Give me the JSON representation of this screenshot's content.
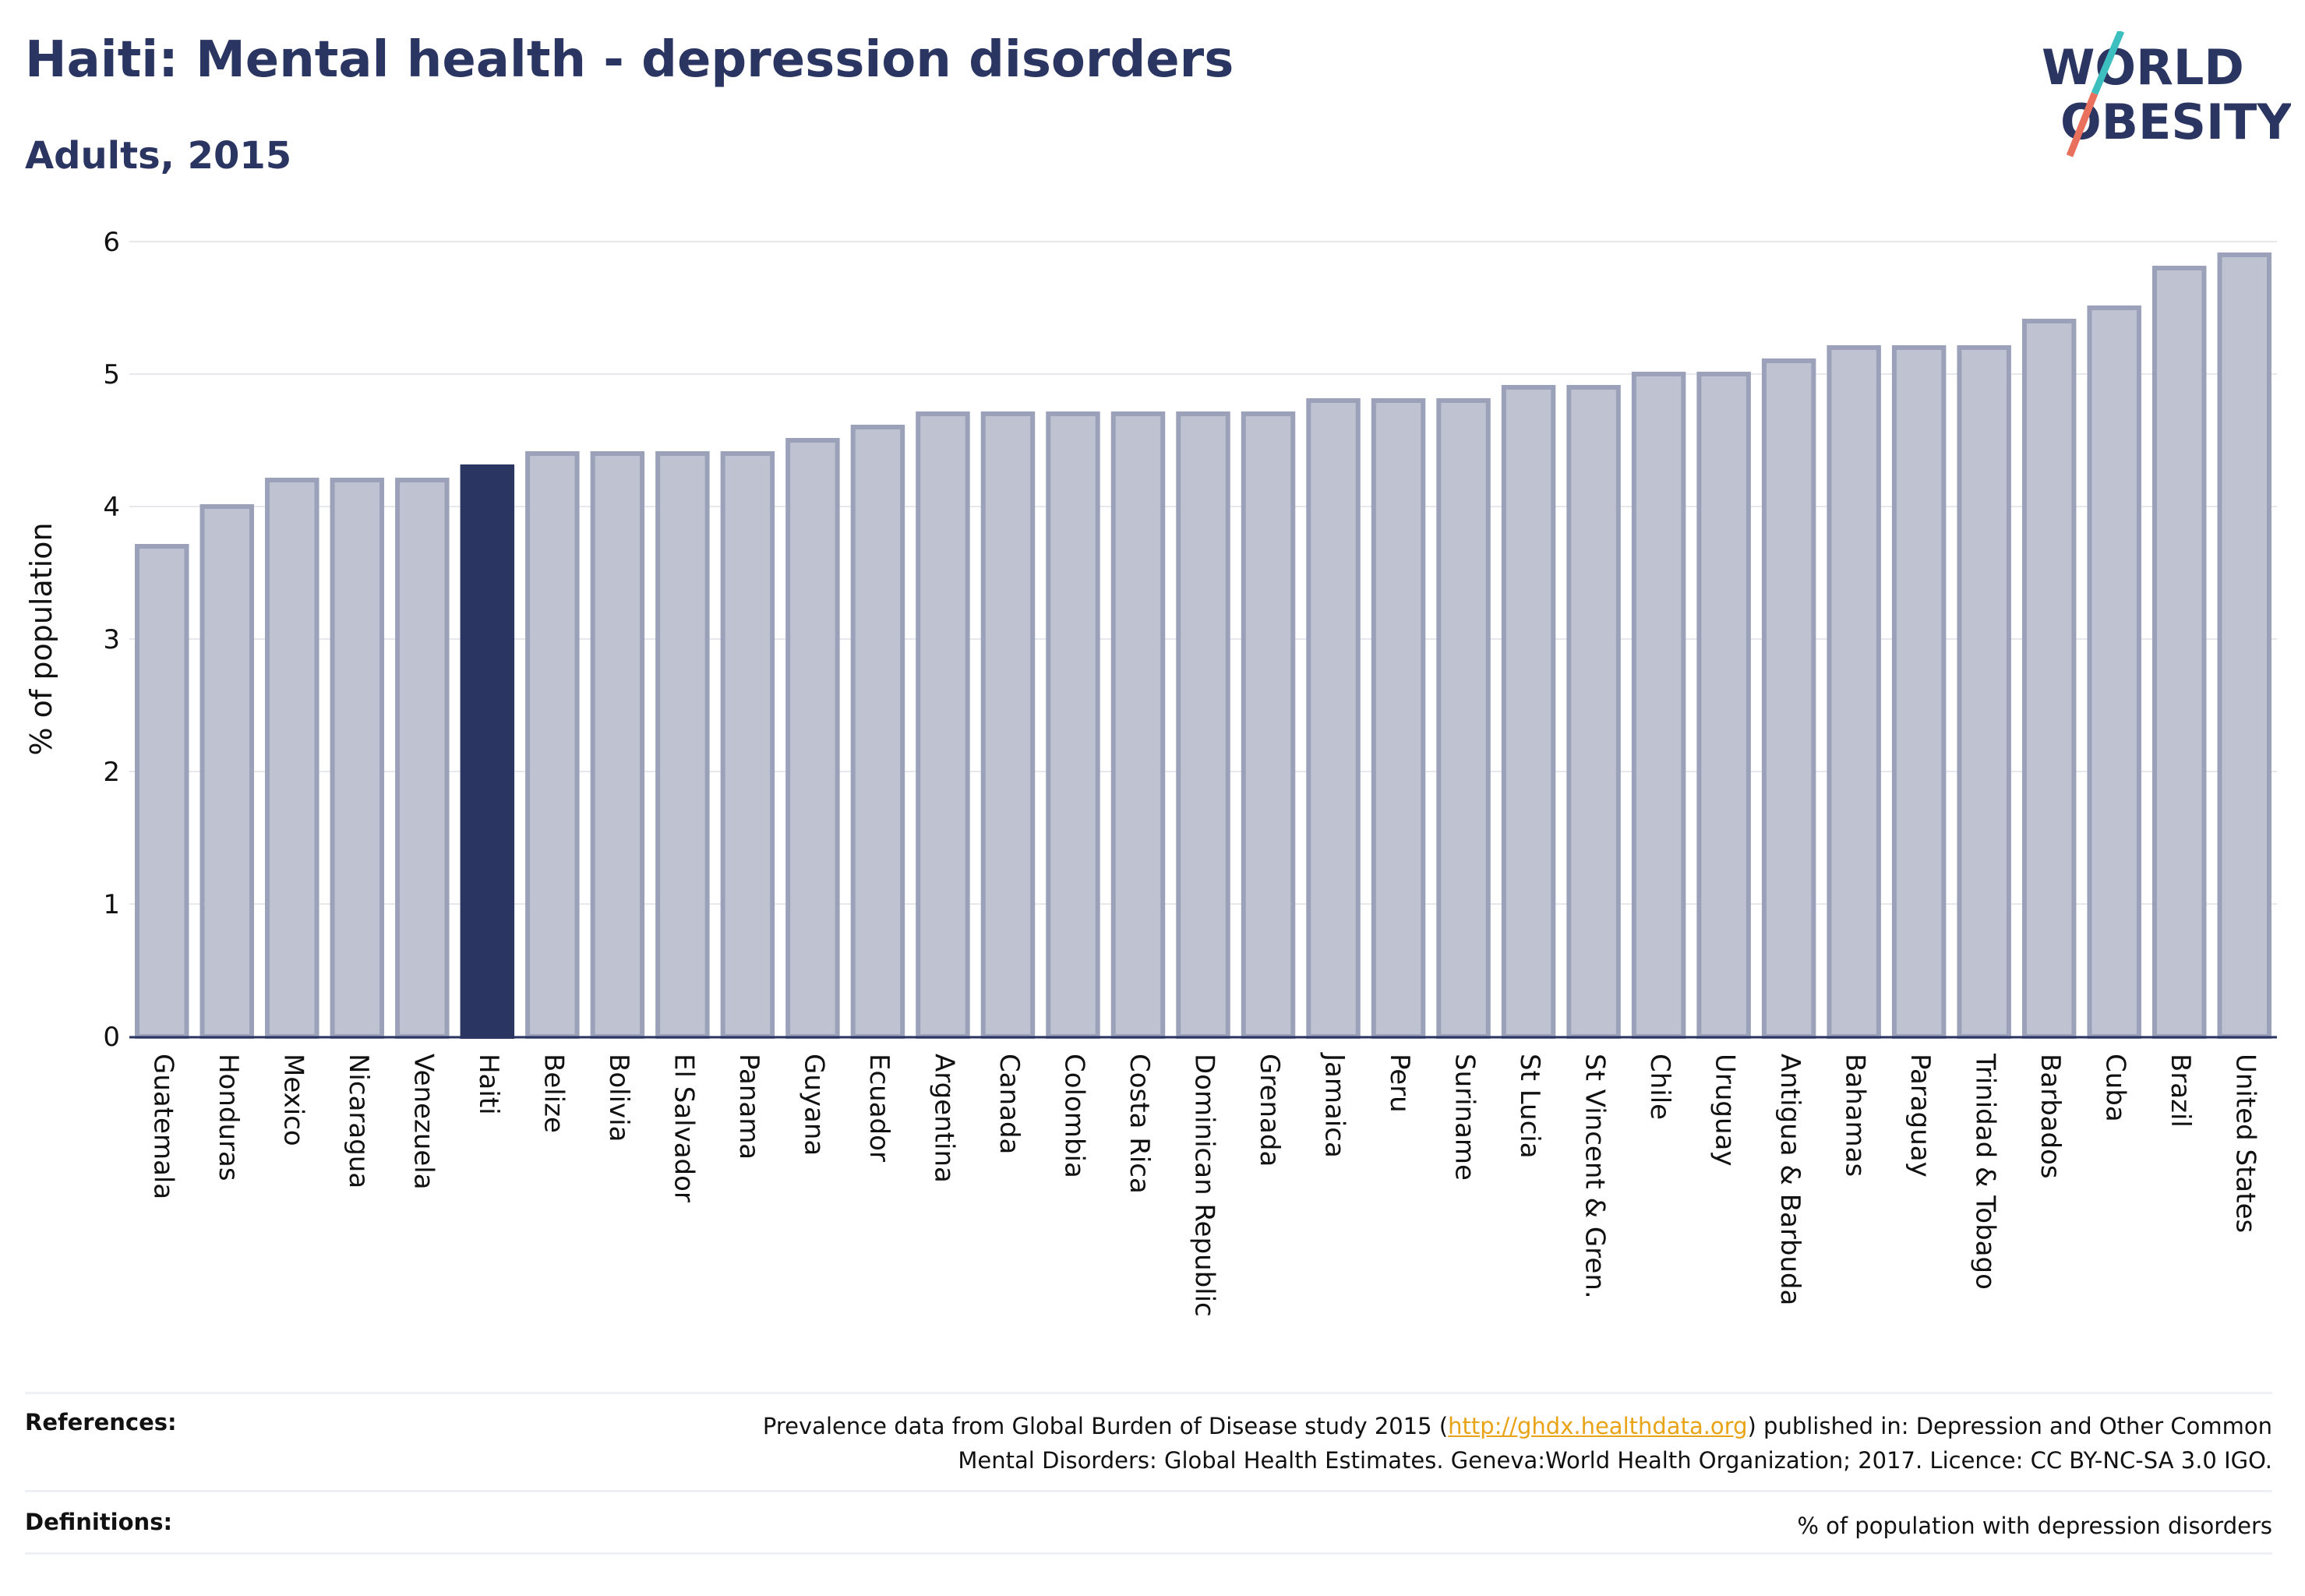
{
  "header": {
    "title": "Haiti: Mental health - depression disorders",
    "subtitle": "Adults, 2015"
  },
  "logo": {
    "line1": "WORLD",
    "line2": "OBESITY"
  },
  "chart_data": {
    "type": "bar",
    "title": "Haiti: Mental health - depression disorders",
    "subtitle": "Adults, 2015",
    "xlabel": "",
    "ylabel": "% of population",
    "ylim": [
      0,
      6
    ],
    "yticks": [
      0,
      1,
      2,
      3,
      4,
      5,
      6
    ],
    "grid": true,
    "highlight": "Haiti",
    "colors": {
      "highlight": "#2b3561",
      "bar_fill": "#bfc3d1",
      "bar_stroke": "#9aa1b9",
      "grid": "#e6e8ee",
      "axis": "#2b3561"
    },
    "categories": [
      "Guatemala",
      "Honduras",
      "Mexico",
      "Nicaragua",
      "Venezuela",
      "Haiti",
      "Belize",
      "Bolivia",
      "El Salvador",
      "Panama",
      "Guyana",
      "Ecuador",
      "Argentina",
      "Canada",
      "Colombia",
      "Costa Rica",
      "Dominican Republic",
      "Grenada",
      "Jamaica",
      "Peru",
      "Suriname",
      "St Lucia",
      "St Vincent & Gren.",
      "Chile",
      "Uruguay",
      "Antigua & Barbuda",
      "Bahamas",
      "Paraguay",
      "Trinidad & Tobago",
      "Barbados",
      "Cuba",
      "Brazil",
      "United States"
    ],
    "values": [
      3.7,
      4.0,
      4.2,
      4.2,
      4.2,
      4.3,
      4.4,
      4.4,
      4.4,
      4.4,
      4.5,
      4.6,
      4.7,
      4.7,
      4.7,
      4.7,
      4.7,
      4.7,
      4.8,
      4.8,
      4.8,
      4.9,
      4.9,
      5.0,
      5.0,
      5.1,
      5.2,
      5.2,
      5.2,
      5.4,
      5.5,
      5.8,
      5.9
    ]
  },
  "footer": {
    "references_label": "References:",
    "references_text_before": "Prevalence data from Global Burden of Disease study 2015 (",
    "references_link": "http://ghdx.healthdata.org",
    "references_text_after": ") published in: Depression and Other Common",
    "references_line2": "Mental Disorders: Global Health Estimates. Geneva:World Health Organization; 2017. Licence: CC BY-NC-SA 3.0 IGO.",
    "definitions_label": "Definitions:",
    "definitions_text": "% of population with depression disorders"
  }
}
